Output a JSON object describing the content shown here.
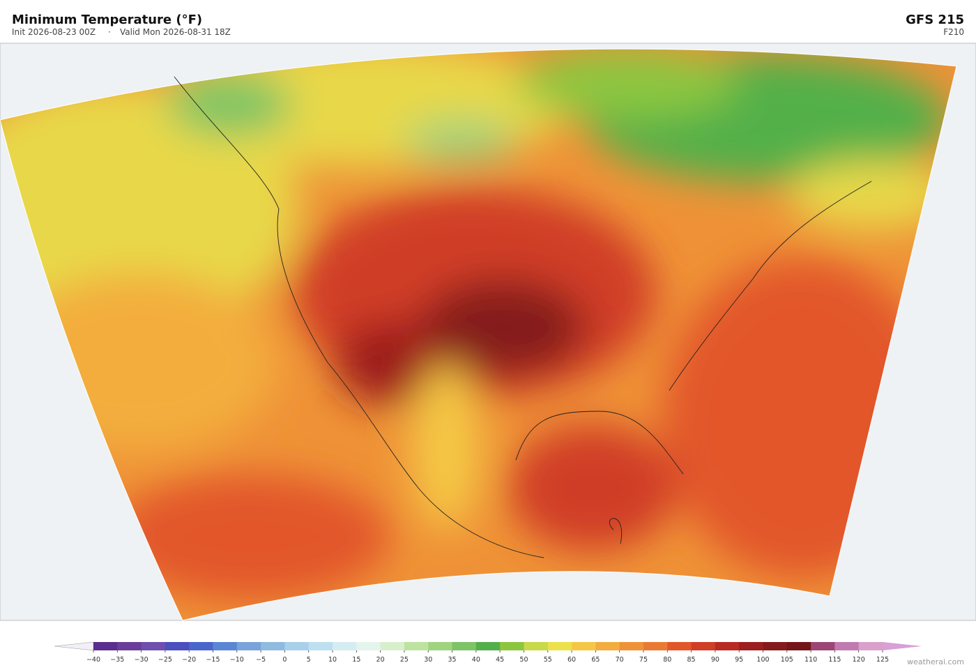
{
  "header": {
    "title": "Minimum Temperature  (°F)",
    "init": "Init 2026-08-23 00Z",
    "valid": "Valid Mon 2026-08-31 18Z",
    "model": "GFS  215",
    "forecast_hour": "F210"
  },
  "colorbar": {
    "ticks": [
      {
        "value": -40,
        "label": "−40"
      },
      {
        "value": -35,
        "label": "−35"
      },
      {
        "value": -30,
        "label": "−30"
      },
      {
        "value": -25,
        "label": "−25"
      },
      {
        "value": -20,
        "label": "−20"
      },
      {
        "value": -15,
        "label": "−15"
      },
      {
        "value": -10,
        "label": "−10"
      },
      {
        "value": -5,
        "label": "−5"
      },
      0,
      5,
      10,
      15,
      20,
      25,
      30,
      35,
      40,
      45,
      50,
      55,
      60,
      65,
      70,
      75,
      80,
      85,
      90,
      95,
      100,
      105,
      110,
      115,
      120,
      125
    ],
    "colors": [
      "#5b2d8e",
      "#6a3d9a",
      "#6e4fb0",
      "#4b4fc0",
      "#4a66cc",
      "#5b86d6",
      "#7aa3dc",
      "#8fbbe0",
      "#a8d0ea",
      "#bde0f0",
      "#d4edf2",
      "#e6f4ee",
      "#d8efcc",
      "#bce3a0",
      "#9ed47e",
      "#7cc465",
      "#52b04a",
      "#8cc63f",
      "#c8d94a",
      "#ebe14b",
      "#f4c845",
      "#f3ad3e",
      "#ef9237",
      "#ea7a33",
      "#e2562a",
      "#d03e26",
      "#b82a22",
      "#9d1e1e",
      "#851a1c",
      "#741519",
      "#9c4676",
      "#c07ab0",
      "#d9a0cc"
    ],
    "under_color": "#f2f0f6",
    "over_color": "#d8a0d6"
  },
  "footer": {
    "credit": "weatherai.com"
  }
}
